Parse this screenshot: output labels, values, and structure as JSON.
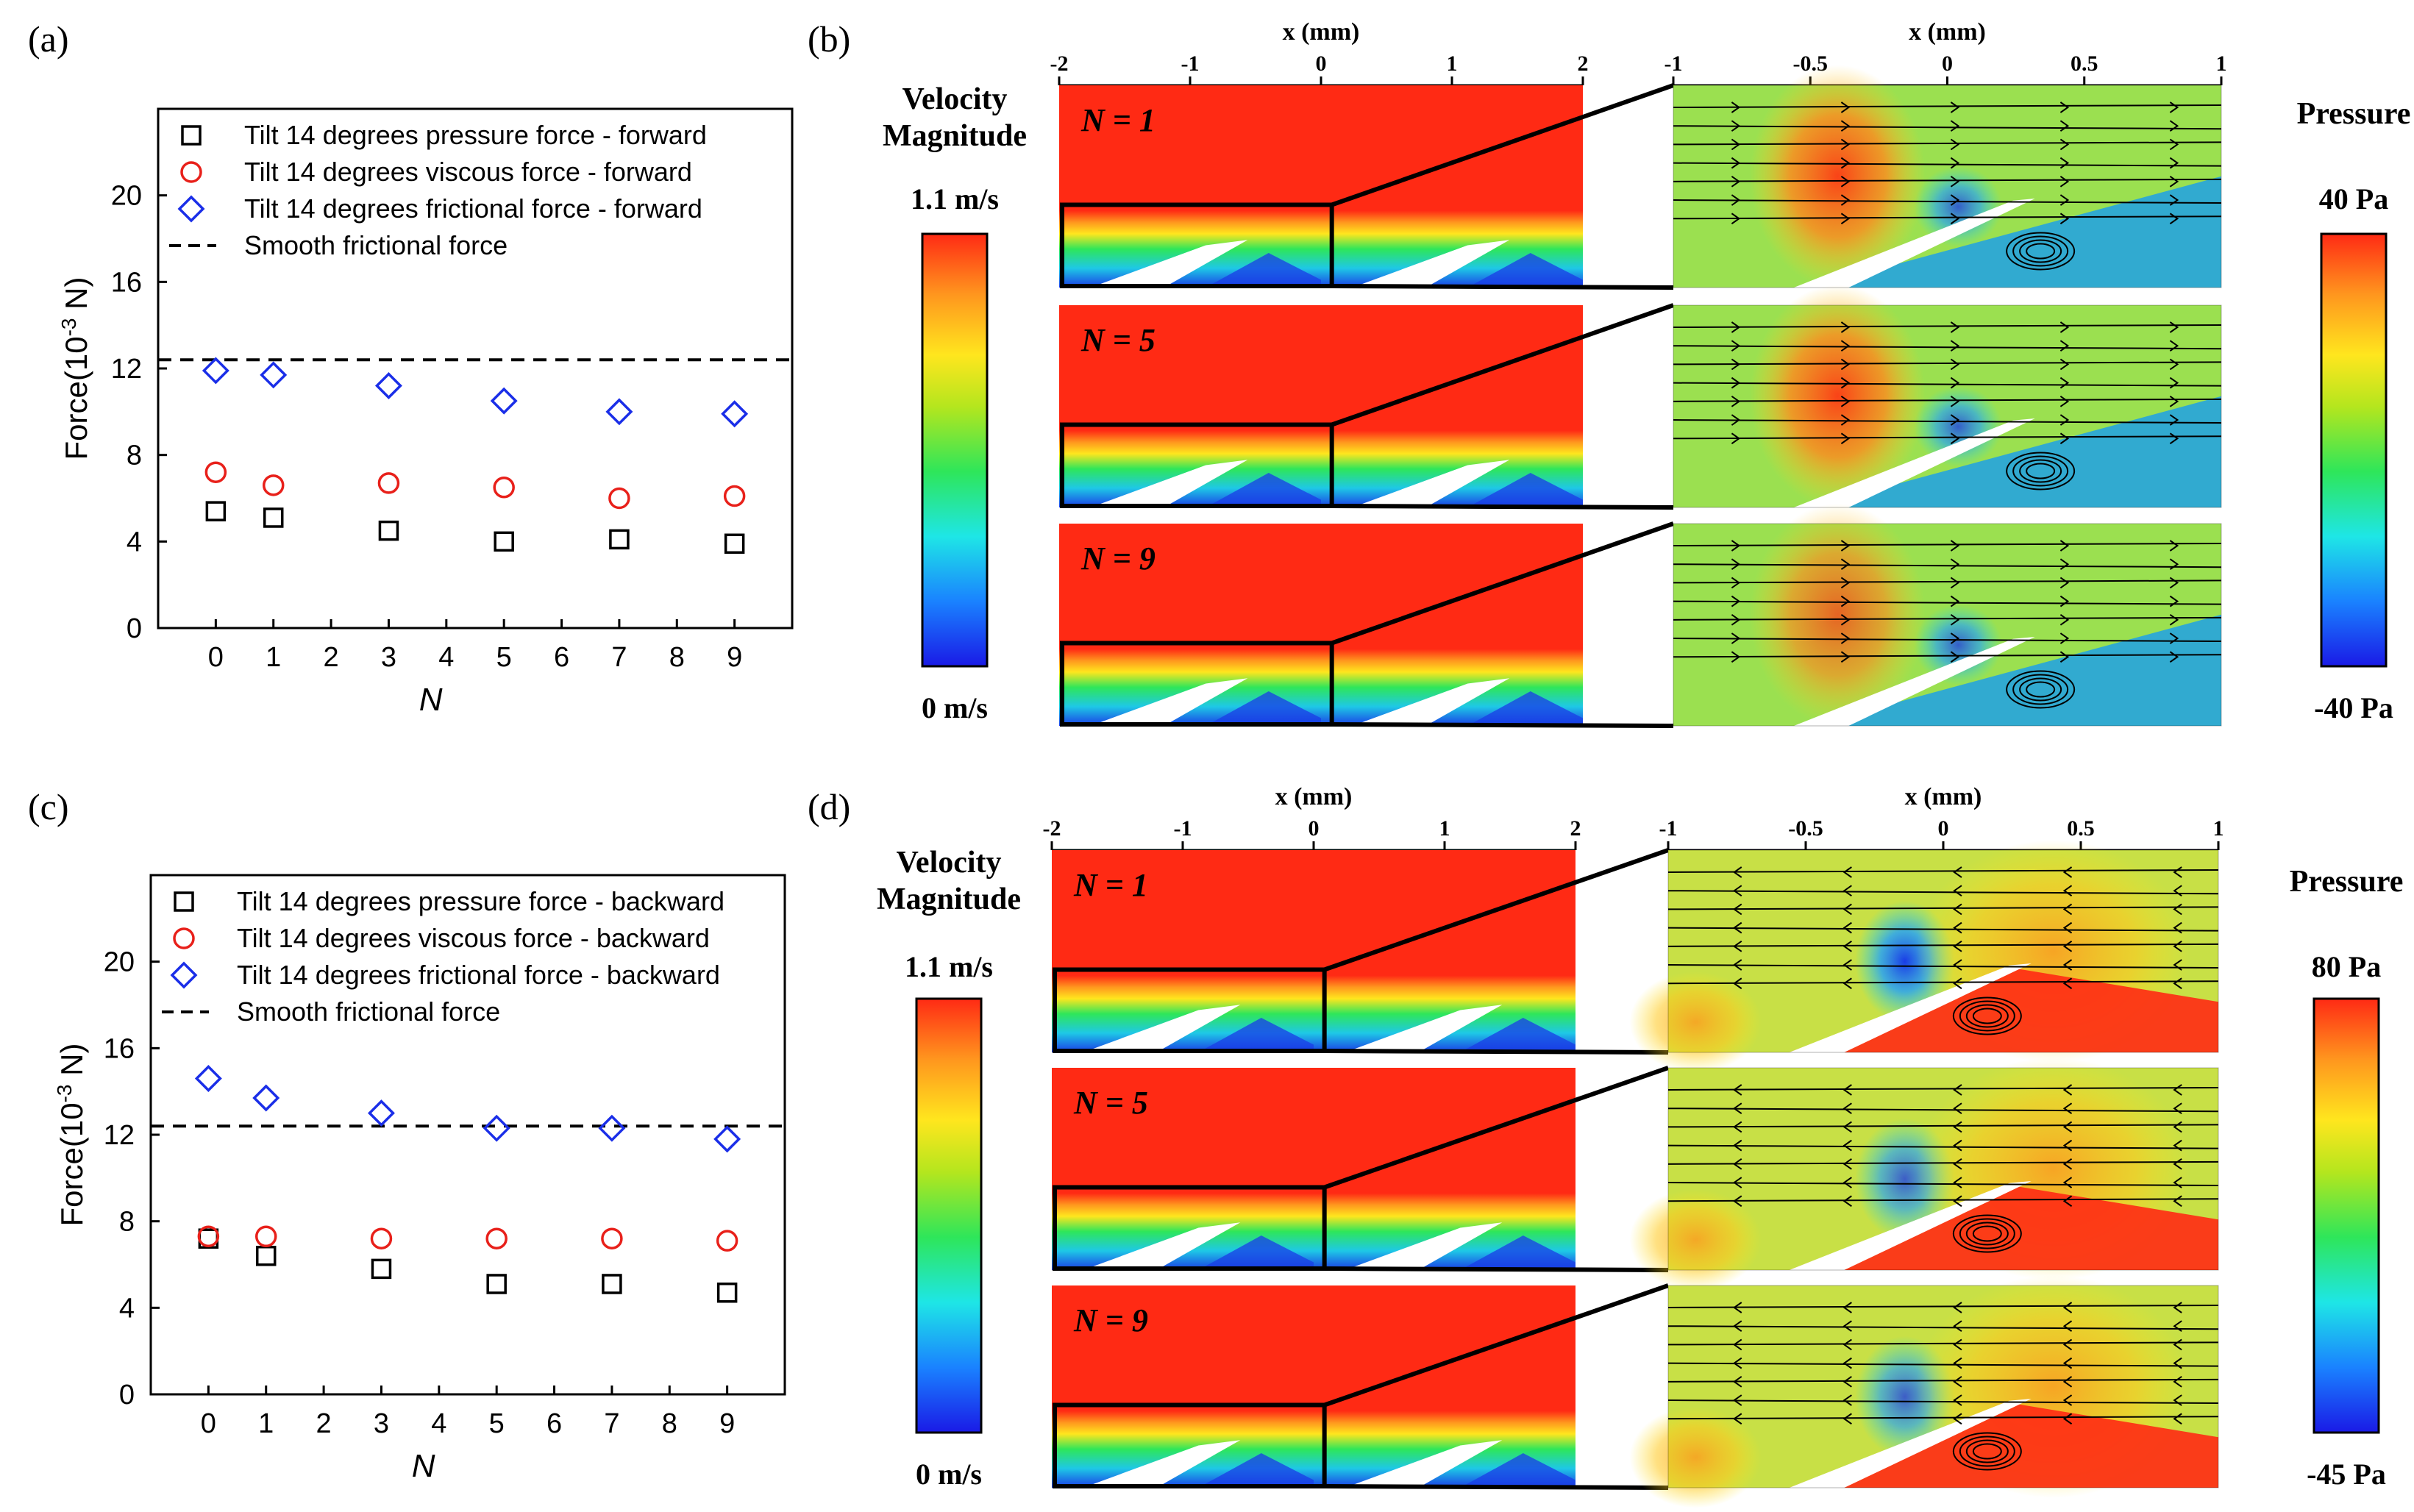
{
  "chart_data": [
    {
      "panel_label": "(a)",
      "type": "scatter",
      "xlabel": "N",
      "ylabel": "Force(10",
      "ylabel_exp": "-3",
      "ylabel_unit": " N)",
      "xlim": [
        -1,
        10
      ],
      "ylim": [
        0,
        24
      ],
      "xticks": [
        0,
        1,
        2,
        3,
        4,
        5,
        6,
        7,
        8,
        9
      ],
      "yticks": [
        0,
        4,
        8,
        12,
        16,
        20
      ],
      "grid": false,
      "legend_position": "top-left",
      "series": [
        {
          "name": "Tilt 14 degrees pressure force - forward",
          "marker": "square",
          "color": "#000000",
          "x": [
            0,
            1,
            3,
            5,
            7,
            9
          ],
          "y": [
            5.4,
            5.1,
            4.5,
            4.0,
            4.1,
            3.9
          ]
        },
        {
          "name": "Tilt 14 degrees viscous force - forward",
          "marker": "circle",
          "color": "#e8201a",
          "x": [
            0,
            1,
            3,
            5,
            7,
            9
          ],
          "y": [
            7.2,
            6.6,
            6.7,
            6.5,
            6.0,
            6.1
          ]
        },
        {
          "name": "Tilt 14 degrees frictional force - forward",
          "marker": "diamond",
          "color": "#1a2ee8",
          "x": [
            0,
            1,
            3,
            5,
            7,
            9
          ],
          "y": [
            11.9,
            11.7,
            11.2,
            10.5,
            10.0,
            9.9
          ]
        }
      ],
      "reference_line": {
        "name": "Smooth frictional force",
        "y": 12.4,
        "style": "dashed"
      }
    },
    {
      "panel_label": "(c)",
      "type": "scatter",
      "xlabel": "N",
      "ylabel": "Force(10",
      "ylabel_exp": "-3",
      "ylabel_unit": " N)",
      "xlim": [
        -1,
        10
      ],
      "ylim": [
        0,
        24
      ],
      "xticks": [
        0,
        1,
        2,
        3,
        4,
        5,
        6,
        7,
        8,
        9
      ],
      "yticks": [
        0,
        4,
        8,
        12,
        16,
        20
      ],
      "grid": false,
      "legend_position": "top-left",
      "series": [
        {
          "name": "Tilt 14 degrees pressure force - backward",
          "marker": "square",
          "color": "#000000",
          "x": [
            0,
            1,
            3,
            5,
            7,
            9
          ],
          "y": [
            7.2,
            6.4,
            5.8,
            5.1,
            5.1,
            4.7
          ]
        },
        {
          "name": "Tilt 14 degrees viscous force - backward",
          "marker": "circle",
          "color": "#e8201a",
          "x": [
            0,
            1,
            3,
            5,
            7,
            9
          ],
          "y": [
            7.3,
            7.3,
            7.2,
            7.2,
            7.2,
            7.1
          ]
        },
        {
          "name": "Tilt 14 degrees frictional force - backward",
          "marker": "diamond",
          "color": "#1a2ee8",
          "x": [
            0,
            1,
            3,
            5,
            7,
            9
          ],
          "y": [
            14.6,
            13.7,
            13.0,
            12.3,
            12.3,
            11.8
          ]
        }
      ],
      "reference_line": {
        "name": "Smooth frictional force",
        "y": 12.4,
        "style": "dashed"
      }
    }
  ],
  "contour_panels": [
    {
      "panel_label": "(b)",
      "left_axis_label": "x (mm)",
      "left_ticks": [
        "-2",
        "-1",
        "0",
        "1",
        "2"
      ],
      "right_axis_label": "x (mm)",
      "right_ticks": [
        "-1",
        "-0.5",
        "0",
        "0.5",
        "1"
      ],
      "velocity_title_1": "Velocity",
      "velocity_title_2": "Magnitude",
      "velocity_max": "1.1 m/s",
      "velocity_min": "0 m/s",
      "pressure_title": "Pressure",
      "pressure_max": "40 Pa",
      "pressure_min": "-40 Pa",
      "rows": [
        "N = 1",
        "N = 5",
        "N = 9"
      ],
      "flow_direction": "forward"
    },
    {
      "panel_label": "(d)",
      "left_axis_label": "x (mm)",
      "left_ticks": [
        "-2",
        "-1",
        "0",
        "1",
        "2"
      ],
      "right_axis_label": "x (mm)",
      "right_ticks": [
        "-1",
        "-0.5",
        "0",
        "0.5",
        "1"
      ],
      "velocity_title_1": "Velocity",
      "velocity_title_2": "Magnitude",
      "velocity_max": "1.1 m/s",
      "velocity_min": "0 m/s",
      "pressure_title": "Pressure",
      "pressure_max": "80 Pa",
      "pressure_min": "-45 Pa",
      "rows": [
        "N = 1",
        "N = 5",
        "N = 9"
      ],
      "flow_direction": "backward"
    }
  ],
  "colors": {
    "jet": [
      "#1a1ae6",
      "#1aa0ff",
      "#1ee6e6",
      "#2ee65a",
      "#b4e61e",
      "#ffe61e",
      "#ff961e",
      "#ff2a14"
    ],
    "pressure_b_field": "#9be050",
    "pressure_d_field": "#c8e046"
  }
}
